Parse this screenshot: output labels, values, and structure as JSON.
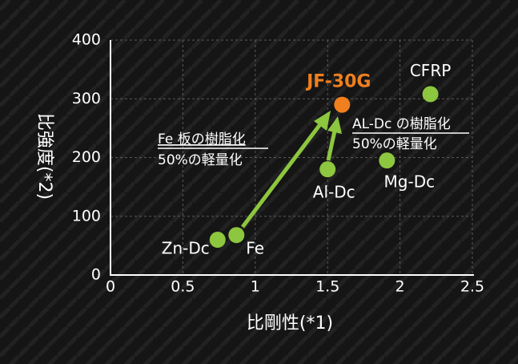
{
  "chart_data": {
    "type": "scatter",
    "x_label": "比剛性(*1)",
    "y_label": "比強度(*2)",
    "xlim": [
      0,
      2.5
    ],
    "xticks": [
      0,
      0.5,
      1,
      1.5,
      2,
      2.5
    ],
    "ylim": [
      0,
      400
    ],
    "yticks": [
      0,
      100,
      200,
      300,
      400
    ],
    "grid": true,
    "series": [
      {
        "name": "Zn-Dc",
        "color": "#8dc63f",
        "x": [
          0.74
        ],
        "values": [
          60
        ]
      },
      {
        "name": "Fe",
        "color": "#8dc63f",
        "x": [
          0.87
        ],
        "values": [
          68
        ]
      },
      {
        "name": "JF-30G",
        "color": "#f07f1e",
        "x": [
          1.6
        ],
        "values": [
          290
        ]
      },
      {
        "name": "Al-Dc",
        "color": "#8dc63f",
        "x": [
          1.5
        ],
        "values": [
          180
        ]
      },
      {
        "name": "Mg-Dc",
        "color": "#8dc63f",
        "x": [
          1.91
        ],
        "values": [
          195
        ]
      },
      {
        "name": "CFRP",
        "color": "#8dc63f",
        "x": [
          2.21
        ],
        "values": [
          308
        ]
      }
    ],
    "annotations": [
      {
        "lines": [
          "Fe 板の樹脂化",
          "50%の軽量化"
        ]
      },
      {
        "lines": [
          "AL-Dc の樹脂化",
          "50%の軽量化"
        ]
      }
    ]
  }
}
